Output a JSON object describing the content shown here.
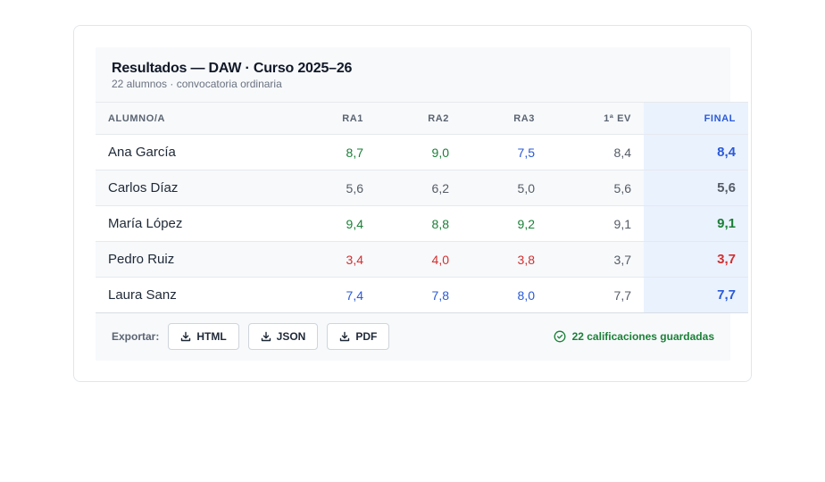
{
  "header": {
    "title": "Resultados — DAW · Curso 2025–26",
    "subtitle": "22 alumnos · convocatoria ordinaria"
  },
  "table": {
    "columns": [
      "ALUMNO/A",
      "RA1",
      "RA2",
      "RA3",
      "1ª EV",
      "FINAL"
    ],
    "rows": [
      {
        "name": "Ana García",
        "ra1": "8,7",
        "ra2": "9,0",
        "ra3": "7,5",
        "ev1": "8,4",
        "final": "8,4"
      },
      {
        "name": "Carlos Díaz",
        "ra1": "5,6",
        "ra2": "6,2",
        "ra3": "5,0",
        "ev1": "5,6",
        "final": "5,6"
      },
      {
        "name": "María López",
        "ra1": "9,4",
        "ra2": "8,8",
        "ra3": "9,2",
        "ev1": "9,1",
        "final": "9,1"
      },
      {
        "name": "Pedro Ruiz",
        "ra1": "3,4",
        "ra2": "4,0",
        "ra3": "3,8",
        "ev1": "3,7",
        "final": "3,7"
      },
      {
        "name": "Laura Sanz",
        "ra1": "7,4",
        "ra2": "7,8",
        "ra3": "8,0",
        "ev1": "7,7",
        "final": "7,7"
      }
    ]
  },
  "grade_colors": {
    "excellent": "#1b7f37",
    "good": "#2a5ad8",
    "pass": "#555c66",
    "fail": "#d32f2f"
  },
  "footer": {
    "export_label": "Exportar:",
    "buttons": [
      {
        "label": "HTML",
        "icon": "download-icon"
      },
      {
        "label": "JSON",
        "icon": "download-icon"
      },
      {
        "label": "PDF",
        "icon": "download-icon"
      }
    ],
    "status": {
      "text": "22 calificaciones guardadas",
      "icon": "check-circle-icon"
    }
  }
}
